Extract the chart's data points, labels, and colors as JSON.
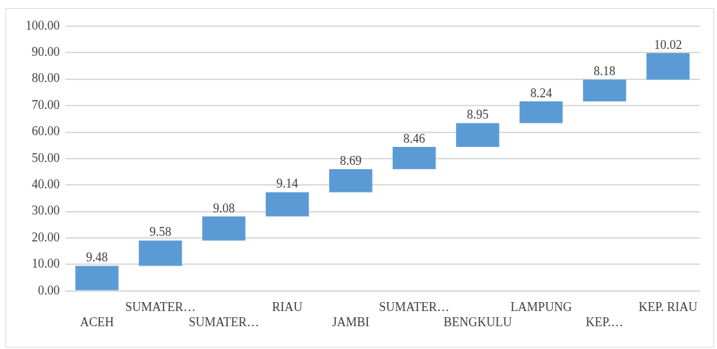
{
  "chart_data": {
    "type": "bar",
    "categories": [
      "ACEH",
      "SUMATER…",
      "SUMATER…",
      "RIAU",
      "JAMBI",
      "SUMATER…",
      "BENGKULU",
      "LAMPUNG",
      "KEP.…",
      "KEP. RIAU"
    ],
    "values": [
      9.48,
      9.58,
      9.08,
      9.14,
      8.69,
      8.46,
      8.95,
      8.24,
      8.18,
      10.02
    ],
    "base": [
      0,
      9.48,
      19.06,
      28.14,
      37.28,
      45.97,
      54.43,
      63.38,
      71.62,
      79.8
    ],
    "color": "#5b9bd5",
    "ylim": [
      0,
      100
    ],
    "yticks": [
      {
        "value": 0,
        "label": "0.00"
      },
      {
        "value": 10,
        "label": "10.00"
      },
      {
        "value": 20,
        "label": "20.00"
      },
      {
        "value": 30,
        "label": "30.00"
      },
      {
        "value": 40,
        "label": "40.00"
      },
      {
        "value": 50,
        "label": "50.00"
      },
      {
        "value": 60,
        "label": "60.00"
      },
      {
        "value": 70,
        "label": "70.00"
      },
      {
        "value": 80,
        "label": "80.00"
      },
      {
        "value": 90,
        "label": "90.00"
      },
      {
        "value": 100,
        "label": "100.00"
      }
    ],
    "grid": "y",
    "data_labels": true
  }
}
